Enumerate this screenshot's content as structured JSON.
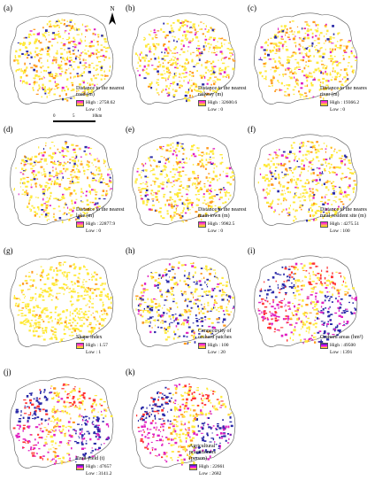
{
  "panels": [
    {
      "label": "(a)",
      "title": [
        "Distance to the nearest",
        "road (m)"
      ],
      "high": "High : 2758.62",
      "low": "Low : 0",
      "scheme": "warm",
      "col": 0,
      "row": 0
    },
    {
      "label": "(b)",
      "title": [
        "Distance to the nearest",
        "railway (m)"
      ],
      "high": "High : 32600.6",
      "low": "Low : 0",
      "scheme": "warm",
      "col": 1,
      "row": 0
    },
    {
      "label": "(c)",
      "title": [
        "Distance to the nearest",
        "river (m)"
      ],
      "high": "High : 19366.2",
      "low": "Low : 0",
      "scheme": "warm",
      "col": 2,
      "row": 0
    },
    {
      "label": "(d)",
      "title": [
        "Distance to the nearest",
        "lake (m)"
      ],
      "high": "High : 22877.9",
      "low": "Low : 0",
      "scheme": "warm",
      "col": 0,
      "row": 1
    },
    {
      "label": "(e)",
      "title": [
        "Distance to the nearest",
        "main town (m)"
      ],
      "high": "High : 9982.5",
      "low": "Low : 0",
      "scheme": "warm",
      "col": 1,
      "row": 1
    },
    {
      "label": "(f)",
      "title": [
        "Distance to the nearest",
        "rural resident site (m)"
      ],
      "high": "High : 4275.51",
      "low": "Low : 100",
      "scheme": "warm",
      "col": 2,
      "row": 1
    },
    {
      "label": "(g)",
      "title": [
        "Shape index"
      ],
      "high": "High : 1.57",
      "low": "Low : 1",
      "scheme": "yellow",
      "col": 0,
      "row": 2
    },
    {
      "label": "(h)",
      "title": [
        "Connectivity of",
        "orchard patches"
      ],
      "high": "High : 100",
      "low": "Low : 20",
      "scheme": "mixed",
      "col": 1,
      "row": 2
    },
    {
      "label": "(i)",
      "title": [
        "Orchard areas (hm²)"
      ],
      "high": "High : 49500",
      "low": "Low : 1391",
      "scheme": "cool",
      "col": 2,
      "row": 2
    },
    {
      "label": "(j)",
      "title": [
        "Fruit yield (t)"
      ],
      "high": "High : 47657",
      "low": "Low : 3141.2",
      "scheme": "cool",
      "col": 0,
      "row": 3
    },
    {
      "label": "(k)",
      "title": [
        "Agricultural",
        "practitioners",
        "(person)"
      ],
      "high": "High : 22661",
      "low": "Low : 2682",
      "scheme": "cool2",
      "col": 1,
      "row": 3
    }
  ],
  "scalebar": {
    "ticks": [
      "0",
      "5",
      "10"
    ],
    "unit": "km"
  },
  "north_label": "N",
  "colors": {
    "yellow": "#ffe93a",
    "orange": "#ff9a1e",
    "red": "#ff3333",
    "magenta": "#e020c0",
    "blue": "#2a2aa8",
    "gradient_high": "#ff00ff",
    "gradient_low": "#ffff00"
  }
}
